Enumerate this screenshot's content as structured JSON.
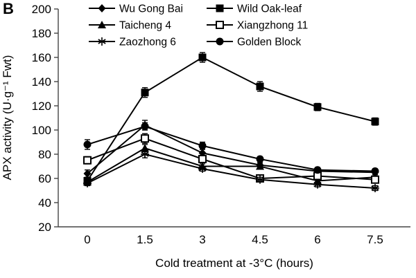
{
  "panel_label": "B",
  "chart_data": {
    "type": "line",
    "title": "",
    "xlabel": "Cold treatment at -3°C (hours)",
    "ylabel": "APX activity (U·g⁻¹ Fwt)",
    "x_tick_labels": [
      "0",
      "1.5",
      "3",
      "4.5",
      "6",
      "7.5"
    ],
    "ylim": [
      20,
      200
    ],
    "y_tick_step": 20,
    "grid": false,
    "legend_position": "top-two-columns",
    "line_color": "#000000",
    "background_color": "#ffffff",
    "series": [
      {
        "name": "Wu Gong Bai",
        "marker": "filled-diamond",
        "values": [
          64,
          104,
          81,
          71,
          66,
          65
        ],
        "errors": [
          3,
          4,
          3,
          2,
          2,
          2
        ]
      },
      {
        "name": "Wild Oak-leaf",
        "marker": "filled-square",
        "values": [
          58,
          131,
          160,
          136,
          119,
          107
        ],
        "errors": [
          3,
          4,
          4,
          4,
          3,
          3
        ]
      },
      {
        "name": "Taicheng 4",
        "marker": "filled-triangle",
        "values": [
          57,
          85,
          70,
          70,
          58,
          61
        ],
        "errors": [
          2,
          3,
          2,
          2,
          2,
          2
        ]
      },
      {
        "name": "Xiangzhong 11",
        "marker": "open-square",
        "values": [
          75,
          93,
          76,
          60,
          62,
          59
        ],
        "errors": [
          3,
          4,
          3,
          2,
          2,
          2
        ]
      },
      {
        "name": "Zaozhong 6",
        "marker": "asterisk",
        "values": [
          56,
          80,
          68,
          59,
          55,
          52
        ],
        "errors": [
          2,
          3,
          2,
          2,
          2,
          2
        ]
      },
      {
        "name": "Golden Block",
        "marker": "filled-circle",
        "values": [
          88,
          103,
          87,
          76,
          67,
          66
        ],
        "errors": [
          4,
          3,
          3,
          2,
          2,
          2
        ]
      }
    ],
    "legend_rows": [
      [
        0,
        1
      ],
      [
        2,
        3
      ],
      [
        4,
        5
      ]
    ]
  }
}
